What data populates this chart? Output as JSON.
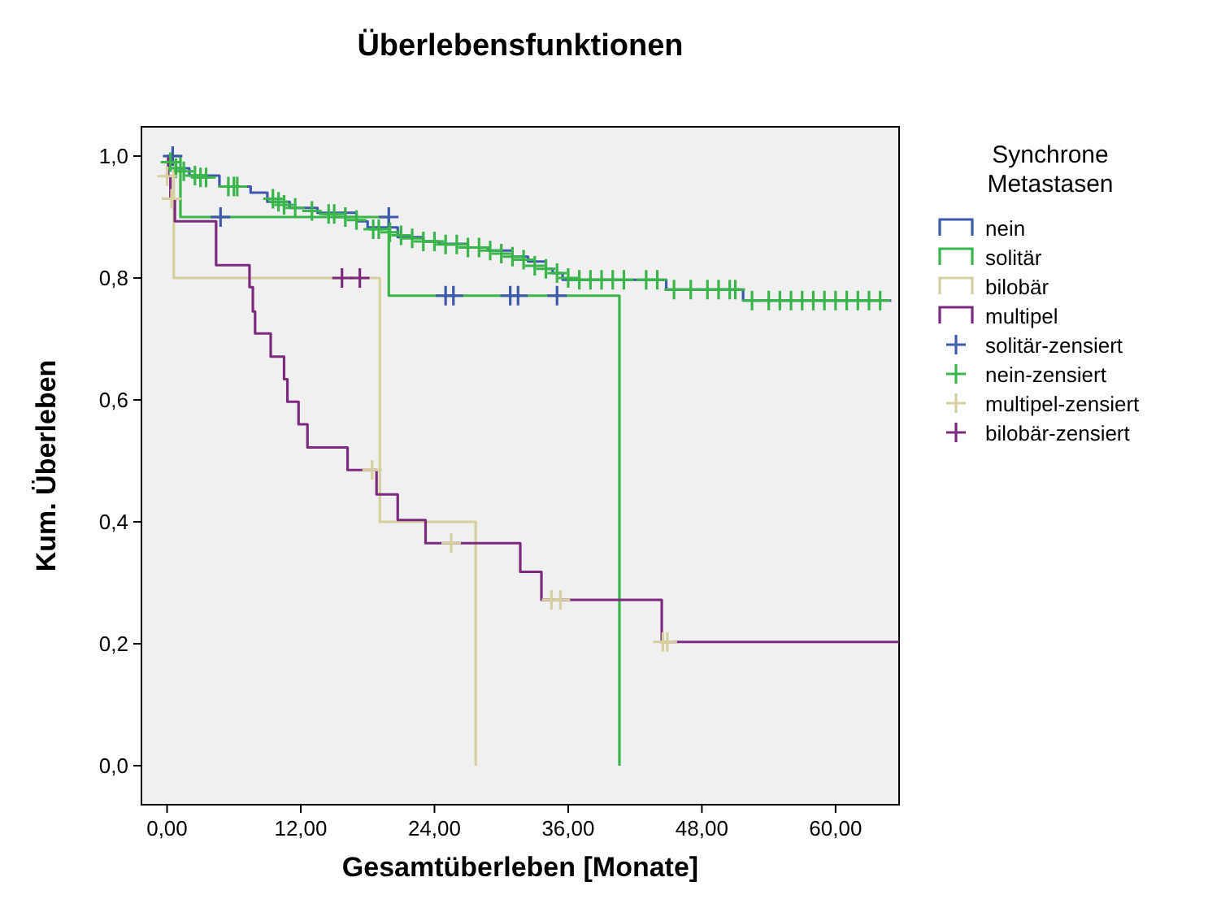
{
  "chart_data": {
    "type": "step",
    "title": "Überlebensfunktionen",
    "xlabel": "Gesamtüberleben [Monate]",
    "ylabel": "Kum. Überleben",
    "legend_title": "Synchrone Metastasen",
    "legend": "right",
    "grid": false,
    "xlim": [
      -2.3,
      65.7
    ],
    "ylim": [
      -0.064,
      1.048
    ],
    "xticks": [
      {
        "value": 0,
        "label": "0,00"
      },
      {
        "value": 12,
        "label": "12,00"
      },
      {
        "value": 24,
        "label": "24,00"
      },
      {
        "value": 36,
        "label": "36,00"
      },
      {
        "value": 48,
        "label": "48,00"
      },
      {
        "value": 60,
        "label": "60,00"
      }
    ],
    "yticks": [
      {
        "value": 0,
        "label": "0,0"
      },
      {
        "value": 0.2,
        "label": "0,2"
      },
      {
        "value": 0.4,
        "label": "0,4"
      },
      {
        "value": 0.6,
        "label": "0,6"
      },
      {
        "value": 0.8,
        "label": "0,8"
      },
      {
        "value": 1,
        "label": "1,0"
      }
    ],
    "series": [
      {
        "name": "nein",
        "type": "step",
        "color": "#3e58ac",
        "x": [
          0,
          0.3,
          0.8,
          2,
          4.7,
          7.5,
          9,
          11,
          13.5,
          17,
          18,
          20.7,
          23,
          24.4,
          27,
          28.8,
          31,
          32.4,
          34,
          34.6,
          35.5,
          44.8,
          51.7,
          65
        ],
        "values": [
          1,
          0.99,
          0.98,
          0.968,
          0.95,
          0.94,
          0.925,
          0.915,
          0.907,
          0.893,
          0.883,
          0.867,
          0.86,
          0.856,
          0.85,
          0.845,
          0.835,
          0.827,
          0.815,
          0.808,
          0.797,
          0.781,
          0.763,
          0.763
        ]
      },
      {
        "name": "solitär",
        "type": "step",
        "color": "#39b54a",
        "x": [
          0,
          1.2,
          19.9,
          40.6,
          40.6
        ],
        "values": [
          1,
          0.9,
          0.771,
          0.771,
          0
        ]
      },
      {
        "name": "bilobär",
        "type": "step",
        "color": "#d6cf9f",
        "x": [
          0,
          0.6,
          19.1,
          27.7,
          27.7
        ],
        "values": [
          1,
          0.8,
          0.4,
          0.4,
          0
        ]
      },
      {
        "name": "multipel",
        "type": "step",
        "color": "#7b2a7e",
        "x": [
          0,
          0.1,
          0.3,
          0.7,
          4.4,
          7.4,
          7.7,
          7.9,
          9.3,
          10.5,
          10.8,
          11.8,
          12.6,
          16.2,
          18.8,
          20.7,
          23.2,
          31.7,
          33.6,
          44.4,
          65.7
        ],
        "values": [
          1,
          0.967,
          0.93,
          0.893,
          0.821,
          0.785,
          0.745,
          0.709,
          0.671,
          0.634,
          0.597,
          0.56,
          0.522,
          0.485,
          0.445,
          0.403,
          0.365,
          0.318,
          0.272,
          0.203,
          0.203
        ]
      },
      {
        "name": "solitär-zensiert",
        "type": "scatter",
        "marker": "cross",
        "color": "#3e58ac",
        "x": [
          0.5,
          4.8,
          19.9,
          25,
          25.7,
          30.8,
          31.5,
          35
        ],
        "values": [
          1,
          0.9,
          0.9,
          0.771,
          0.771,
          0.771,
          0.771,
          0.771
        ]
      },
      {
        "name": "nein-zensiert",
        "type": "scatter",
        "marker": "cross",
        "color": "#39b54a",
        "x": [
          0.3,
          0.8,
          1.5,
          2.5,
          3,
          3.5,
          5.5,
          6,
          6.3,
          9.5,
          10,
          10.5,
          11.5,
          13,
          14.5,
          15,
          16,
          17,
          18.5,
          19,
          20,
          21,
          22,
          23,
          24,
          25,
          26,
          27,
          28,
          29,
          30,
          31,
          32,
          33,
          34,
          35,
          36,
          37,
          38,
          39,
          40,
          41,
          43,
          44,
          45.5,
          47,
          48.5,
          49.5,
          50.5,
          51,
          52.5,
          54,
          55,
          56,
          57,
          58,
          59,
          60,
          61,
          62,
          63,
          64
        ],
        "values": [
          0.99,
          0.98,
          0.975,
          0.968,
          0.965,
          0.965,
          0.95,
          0.95,
          0.95,
          0.93,
          0.925,
          0.92,
          0.915,
          0.91,
          0.905,
          0.905,
          0.9,
          0.895,
          0.88,
          0.88,
          0.875,
          0.87,
          0.865,
          0.86,
          0.86,
          0.855,
          0.855,
          0.85,
          0.85,
          0.845,
          0.84,
          0.835,
          0.83,
          0.82,
          0.815,
          0.808,
          0.8,
          0.797,
          0.797,
          0.797,
          0.797,
          0.797,
          0.797,
          0.797,
          0.781,
          0.781,
          0.781,
          0.781,
          0.781,
          0.781,
          0.763,
          0.763,
          0.763,
          0.763,
          0.763,
          0.763,
          0.763,
          0.763,
          0.763,
          0.763,
          0.763,
          0.763
        ]
      },
      {
        "name": "multipel-zensiert",
        "type": "scatter",
        "marker": "cross",
        "color": "#d6cf9f",
        "x": [
          0,
          0.4,
          18.4,
          25.5,
          34.5,
          35.3,
          44.5,
          44.9
        ],
        "values": [
          0.967,
          0.93,
          0.485,
          0.365,
          0.272,
          0.272,
          0.203,
          0.203
        ]
      },
      {
        "name": "bilobär-zensiert",
        "type": "scatter",
        "marker": "cross",
        "color": "#7b2a7e",
        "x": [
          15.7,
          17.3
        ],
        "values": [
          0.8,
          0.8
        ]
      }
    ]
  }
}
